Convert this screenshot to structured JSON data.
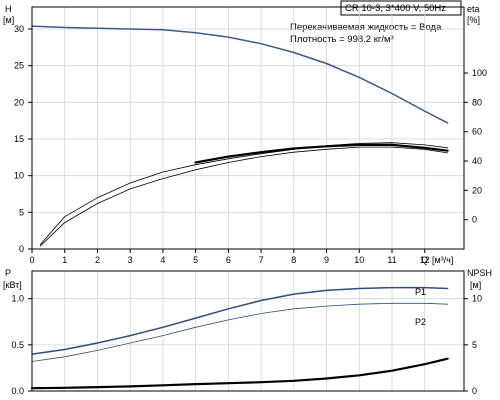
{
  "header": {
    "model": "CR 10-3, 3*400 V, 50Hz",
    "fluid": "Перекачиваемая жидкость = Вода",
    "density": "Плотность = 998.2 кг/м³"
  },
  "chart_data": [
    {
      "type": "line",
      "name": "head-efficiency",
      "xlabel": "Q",
      "xunit": "[м³/ч]",
      "ylabel": "H",
      "yunit": "[м]",
      "y2label": "eta",
      "y2unit": "[%]",
      "xlim": [
        0,
        13.2
      ],
      "ylim": [
        0,
        33
      ],
      "y2lim": [
        -20,
        145
      ],
      "xticks": [
        0,
        1,
        2,
        3,
        4,
        5,
        6,
        7,
        8,
        9,
        10,
        11,
        12
      ],
      "yticks": [
        0,
        5,
        10,
        15,
        20,
        25,
        30
      ],
      "y2ticks": [
        0,
        20,
        40,
        60,
        80,
        100
      ],
      "grid": true,
      "series": [
        {
          "axis": "left",
          "color": "#3a5a8c",
          "style": "solid-medium",
          "x": [
            0,
            1,
            2,
            3,
            4,
            5,
            6,
            7,
            8,
            9,
            10,
            11,
            12,
            12.7
          ],
          "values": [
            30.4,
            30.2,
            30.1,
            30.0,
            29.9,
            29.5,
            28.9,
            28.0,
            26.8,
            25.3,
            23.4,
            21.2,
            18.8,
            17.2
          ]
        },
        {
          "axis": "right",
          "color": "#000000",
          "style": "thin",
          "x": [
            0.25,
            1,
            2,
            3,
            4,
            5,
            6,
            7,
            8,
            9,
            10,
            11,
            12,
            12.7
          ],
          "values": [
            -18,
            -2,
            11,
            21,
            28,
            34,
            39,
            43,
            46,
            48,
            49.5,
            49.5,
            48,
            45.5
          ]
        },
        {
          "axis": "right",
          "color": "#000000",
          "style": "thin",
          "x": [
            0.25,
            1,
            2,
            3,
            4,
            5,
            6,
            7,
            8,
            9,
            10,
            11,
            12,
            12.7
          ],
          "values": [
            -17,
            2,
            15,
            25,
            32.5,
            37.5,
            41.5,
            45,
            48,
            50.5,
            52,
            52.5,
            51,
            49
          ]
        },
        {
          "axis": "left",
          "color": "#000000",
          "style": "thick",
          "x": [
            5,
            6,
            7,
            8,
            9,
            10,
            11,
            12,
            12.7
          ],
          "values": [
            11.8,
            12.6,
            13.2,
            13.7,
            14.0,
            14.2,
            14.2,
            13.8,
            13.4
          ]
        }
      ],
      "x_end_label": "Q"
    },
    {
      "type": "line",
      "name": "power-npsh",
      "ylabel": "P",
      "yunit": "[кВт]",
      "y2label": "NPSH",
      "y2unit": "[м]",
      "xlim": [
        0,
        13.2
      ],
      "ylim": [
        0,
        1.3
      ],
      "y2lim": [
        0,
        13
      ],
      "yticks": [
        0.0,
        0.5,
        1.0
      ],
      "ytick_labels": [
        "0.0",
        "0.5",
        "1.0"
      ],
      "y2ticks": [
        0,
        5,
        10
      ],
      "grid": true,
      "series": [
        {
          "name": "P1",
          "axis": "left",
          "color": "#2d4f80",
          "style": "solid-medium",
          "x": [
            0,
            1,
            2,
            3,
            4,
            5,
            6,
            7,
            8,
            9,
            10,
            11,
            12,
            12.7
          ],
          "values": [
            0.4,
            0.45,
            0.52,
            0.6,
            0.69,
            0.79,
            0.89,
            0.98,
            1.05,
            1.09,
            1.11,
            1.12,
            1.12,
            1.11
          ]
        },
        {
          "name": "P2",
          "axis": "left",
          "color": "#2d4f80",
          "style": "thin",
          "x": [
            0,
            1,
            2,
            3,
            4,
            5,
            6,
            7,
            8,
            9,
            10,
            11,
            12,
            12.7
          ],
          "values": [
            0.32,
            0.37,
            0.44,
            0.52,
            0.6,
            0.69,
            0.77,
            0.84,
            0.89,
            0.92,
            0.94,
            0.95,
            0.95,
            0.94
          ]
        },
        {
          "axis": "right",
          "color": "#000000",
          "style": "thick",
          "x": [
            0,
            1,
            2,
            3,
            4,
            5,
            6,
            7,
            8,
            9,
            10,
            11,
            12,
            12.7
          ],
          "values": [
            0.3,
            0.35,
            0.42,
            0.5,
            0.62,
            0.75,
            0.85,
            0.95,
            1.1,
            1.35,
            1.7,
            2.2,
            2.9,
            3.5
          ]
        }
      ]
    }
  ]
}
